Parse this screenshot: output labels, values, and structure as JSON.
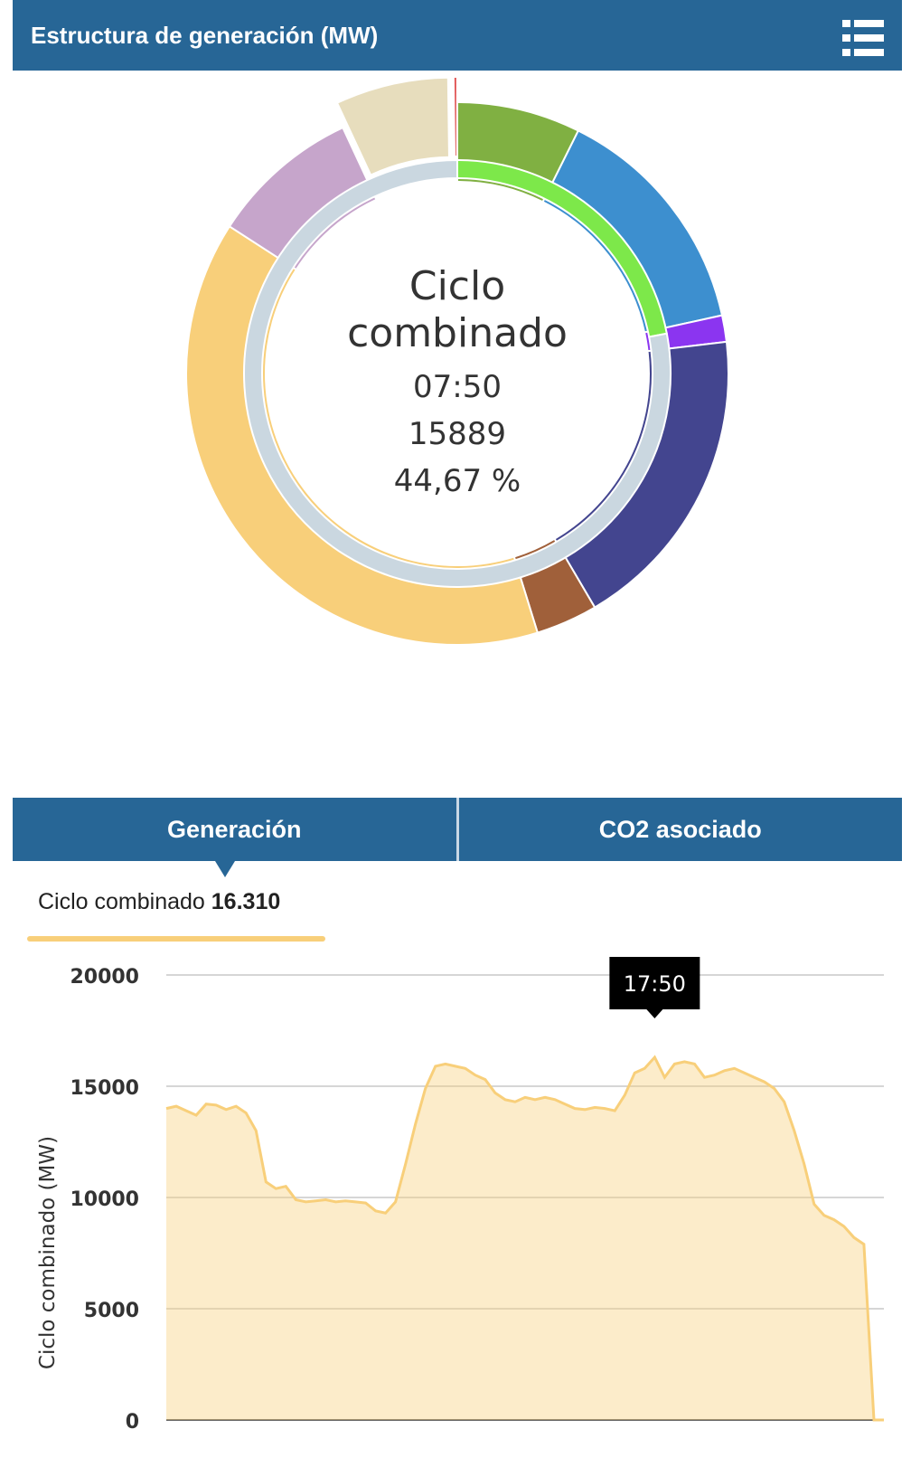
{
  "header": {
    "title": "Estructura de generación (MW)",
    "menu_icon": "list-icon"
  },
  "donut": {
    "center_name_line1": "Ciclo",
    "center_name_line2": "combinado",
    "center_time": "07:50",
    "center_value": "15889",
    "center_percent": "44,67 %",
    "outer_segments": [
      {
        "value": 7.0,
        "color": "#80b042"
      },
      {
        "value": 13.5,
        "color": "#3d8fcf"
      },
      {
        "value": 1.5,
        "color": "#8b35f0"
      },
      {
        "value": 17.5,
        "color": "#43458f"
      },
      {
        "value": 3.5,
        "color": "#a0603a"
      },
      {
        "value": 37.0,
        "color": "#f8cf7a"
      },
      {
        "value": 8.5,
        "color": "#c6a5cb"
      },
      {
        "value": 6.4,
        "color": "#e7ddbd",
        "exploded": true
      },
      {
        "value": 0.2,
        "color": "#e05050",
        "exploded": true
      }
    ],
    "inner_segments": [
      {
        "value": 22.0,
        "color": "#7de84a"
      },
      {
        "value": 78.0,
        "color": "#cad7e0"
      }
    ]
  },
  "tabs": [
    {
      "label": "Generación",
      "active": true
    },
    {
      "label": "CO2 asociado",
      "active": false
    }
  ],
  "legend": {
    "name": "Ciclo combinado",
    "value": "16.310",
    "color": "#f8cf7a"
  },
  "chart_data": {
    "type": "area",
    "series": [
      {
        "name": "Ciclo combinado",
        "color": "#f8cf7a",
        "values": [
          14000,
          14100,
          13900,
          13700,
          14200,
          14150,
          13950,
          14100,
          13800,
          13000,
          10700,
          10400,
          10500,
          9900,
          9800,
          9850,
          9900,
          9800,
          9850,
          9800,
          9750,
          9400,
          9300,
          9800,
          11500,
          13300,
          14900,
          15900,
          16000,
          15900,
          15800,
          15500,
          15300,
          14700,
          14400,
          14300,
          14500,
          14400,
          14500,
          14400,
          14200,
          14000,
          13950,
          14050,
          14000,
          13900,
          14600,
          15600,
          15800,
          16300,
          15400,
          16000,
          16100,
          16000,
          15400,
          15500,
          15700,
          15800,
          15600,
          15400,
          15200,
          14900,
          14300,
          13000,
          11500,
          9700,
          9200,
          9000,
          8700,
          8200,
          7900,
          0,
          0
        ]
      }
    ],
    "ylabel": "Ciclo combinado (MW)",
    "ylim": [
      0,
      20000
    ],
    "yticks": [
      "0",
      "5000",
      "10000",
      "15000",
      "20000"
    ],
    "grid": true,
    "tooltip": {
      "label": "17:50",
      "index": 49
    }
  }
}
